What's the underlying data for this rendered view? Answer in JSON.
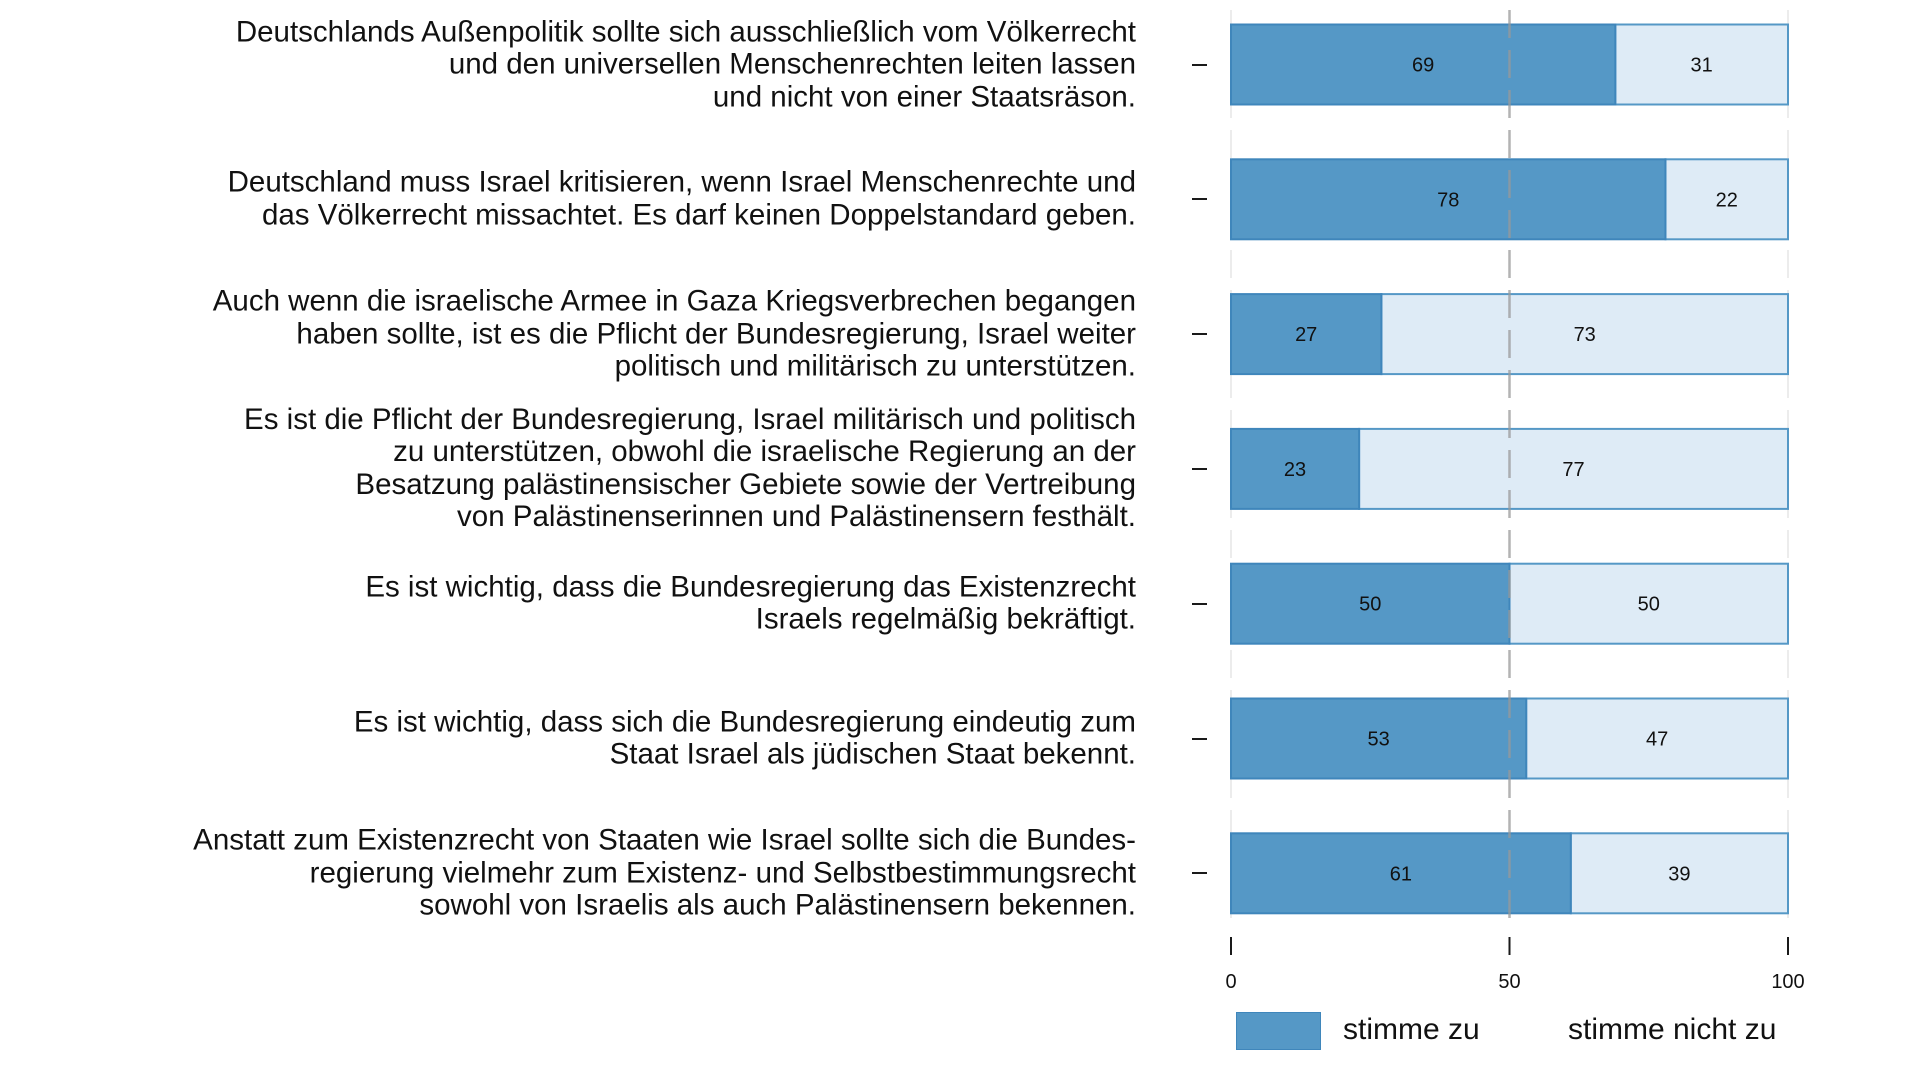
{
  "chart_data": {
    "type": "bar",
    "orientation": "horizontal",
    "stacked": true,
    "title": "",
    "xlabel": "",
    "ylabel": "",
    "xlim": [
      0,
      100
    ],
    "xticks": [
      0,
      50,
      100
    ],
    "xtick_labels": [
      "0",
      "50",
      "100"
    ],
    "reference_line": {
      "x": 50,
      "style": "dashed"
    },
    "grid": "dashed vertical lines at 0, 50, 100",
    "legend_position": "bottom",
    "categories": [
      [
        "Deutschlands Außenpolitik sollte sich ausschließlich vom Völkerrecht",
        "und den universellen Menschenrechten leiten lassen",
        "und nicht von einer Staatsräson."
      ],
      [
        "Deutschland muss Israel kritisieren, wenn Israel Menschenrechte und",
        "das Völkerrecht missachtet. Es darf keinen Doppelstandard geben."
      ],
      [
        "Auch wenn die israelische Armee in Gaza Kriegsverbrechen begangen",
        "haben sollte, ist es die Pflicht der Bundesregierung, Israel weiter",
        "politisch und militärisch zu unterstützen."
      ],
      [
        "Es ist die Pflicht der Bundesregierung, Israel militärisch und politisch",
        "zu unterstützen, obwohl die israelische Regierung an der",
        "Besatzung palästinensischer Gebiete sowie der Vertreibung",
        "von Palästinenserinnen und Palästinensern festhält."
      ],
      [
        "Es ist wichtig, dass die Bundesregierung das Existenzrecht",
        "Israels regelmäßig bekräftigt."
      ],
      [
        "Es ist wichtig, dass sich die Bundesregierung eindeutig zum",
        "Staat Israel als jüdischen Staat bekennt."
      ],
      [
        "Anstatt zum Existenzrecht von Staaten wie Israel sollte sich die Bundes-",
        "regierung vielmehr zum Existenz- und Selbstbestimmungsrecht",
        "sowohl von Israelis als auch Palästinensern bekennen."
      ]
    ],
    "series": [
      {
        "name": "stimme zu",
        "color": "#5598c6",
        "border": "#3f86bb",
        "values": [
          69,
          78,
          27,
          23,
          50,
          53,
          61
        ]
      },
      {
        "name": "stimme nicht zu",
        "color": "#deebf6",
        "border": "#5598c6",
        "values": [
          31,
          22,
          73,
          77,
          50,
          47,
          39
        ]
      }
    ],
    "data_labels": true
  },
  "legend": {
    "agree_label": "stimme zu",
    "disagree_label": "stimme nicht zu"
  }
}
